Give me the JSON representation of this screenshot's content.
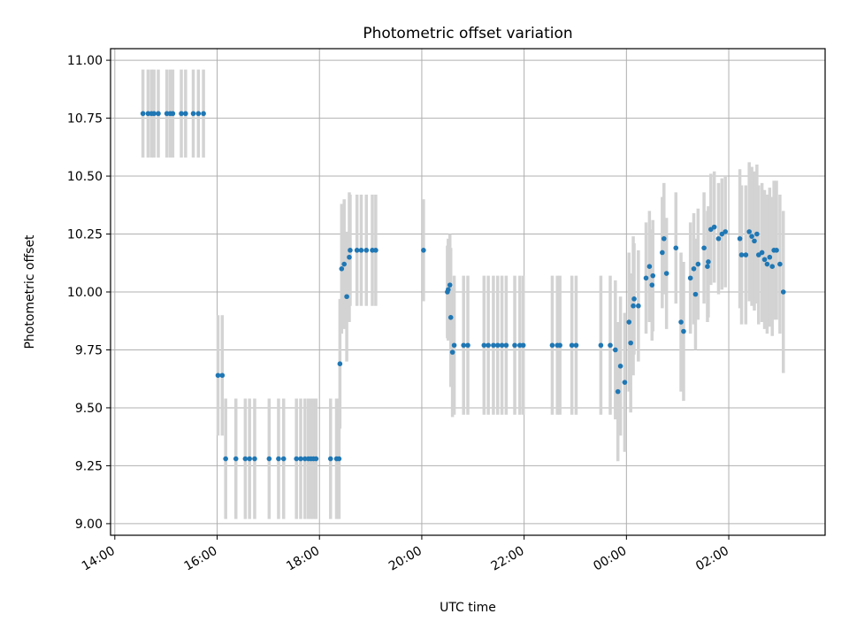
{
  "chart_data": {
    "type": "scatter",
    "title": "Photometric offset variation",
    "xlabel": "UTC time",
    "ylabel": "Photometric offset",
    "xlim": [
      "13:55",
      "27:53"
    ],
    "ylim": [
      8.95,
      11.05
    ],
    "x_ticks": [
      {
        "value": "14:00",
        "label": "14:00"
      },
      {
        "value": "16:00",
        "label": "16:00"
      },
      {
        "value": "18:00",
        "label": "18:00"
      },
      {
        "value": "20:00",
        "label": "20:00"
      },
      {
        "value": "22:00",
        "label": "22:00"
      },
      {
        "value": "24:00",
        "label": "00:00"
      },
      {
        "value": "26:00",
        "label": "02:00"
      }
    ],
    "y_ticks": [
      "9.00",
      "9.25",
      "9.50",
      "9.75",
      "10.00",
      "10.25",
      "10.50",
      "10.75",
      "11.00"
    ],
    "grid": true,
    "colors": {
      "marker": "#1f77b4",
      "errorbar": "#d3d3d3",
      "grid": "#b0b0b0"
    },
    "series": [
      {
        "points": [
          [
            "14:33",
            10.77,
            0.19
          ],
          [
            "14:39",
            10.77,
            0.19
          ],
          [
            "14:43",
            10.77,
            0.19
          ],
          [
            "14:46",
            10.77,
            0.19
          ],
          [
            "14:51",
            10.77,
            0.19
          ],
          [
            "15:01",
            10.77,
            0.19
          ],
          [
            "15:05",
            10.77,
            0.19
          ],
          [
            "15:08",
            10.77,
            0.19
          ],
          [
            "15:18",
            10.77,
            0.19
          ],
          [
            "15:23",
            10.77,
            0.19
          ],
          [
            "15:32",
            10.77,
            0.19
          ],
          [
            "15:38",
            10.77,
            0.19
          ],
          [
            "15:44",
            10.77,
            0.19
          ],
          [
            "16:01",
            9.64,
            0.26
          ],
          [
            "16:06",
            9.64,
            0.26
          ],
          [
            "16:10",
            9.28,
            0.26
          ],
          [
            "16:22",
            9.28,
            0.26
          ],
          [
            "16:33",
            9.28,
            0.26
          ],
          [
            "16:38",
            9.28,
            0.26
          ],
          [
            "16:44",
            9.28,
            0.26
          ],
          [
            "17:01",
            9.28,
            0.26
          ],
          [
            "17:12",
            9.28,
            0.26
          ],
          [
            "17:18",
            9.28,
            0.26
          ],
          [
            "17:33",
            9.28,
            0.26
          ],
          [
            "17:38",
            9.28,
            0.26
          ],
          [
            "17:43",
            9.28,
            0.26
          ],
          [
            "17:47",
            9.28,
            0.26
          ],
          [
            "17:50",
            9.28,
            0.26
          ],
          [
            "17:53",
            9.28,
            0.26
          ],
          [
            "17:56",
            9.28,
            0.26
          ],
          [
            "18:13",
            9.28,
            0.26
          ],
          [
            "18:20",
            9.28,
            0.26
          ],
          [
            "18:23",
            9.28,
            0.26
          ],
          [
            "18:24",
            9.69,
            0.28
          ],
          [
            "18:26",
            10.1,
            0.28
          ],
          [
            "18:29",
            10.12,
            0.28
          ],
          [
            "18:32",
            9.98,
            0.28
          ],
          [
            "18:35",
            10.15,
            0.28
          ],
          [
            "18:36",
            10.18,
            0.24
          ],
          [
            "18:44",
            10.18,
            0.24
          ],
          [
            "18:49",
            10.18,
            0.24
          ],
          [
            "18:55",
            10.18,
            0.24
          ],
          [
            "19:02",
            10.18,
            0.24
          ],
          [
            "19:06",
            10.18,
            0.24
          ],
          [
            "20:02",
            10.18,
            0.22
          ],
          [
            "20:30",
            10.0,
            0.2
          ],
          [
            "20:31",
            10.01,
            0.22
          ],
          [
            "20:33",
            10.03,
            0.22
          ],
          [
            "20:34",
            9.89,
            0.3
          ],
          [
            "20:36",
            9.74,
            0.28
          ],
          [
            "20:38",
            9.77,
            0.3
          ],
          [
            "20:49",
            9.77,
            0.3
          ],
          [
            "20:54",
            9.77,
            0.3
          ],
          [
            "21:13",
            9.77,
            0.3
          ],
          [
            "21:18",
            9.77,
            0.3
          ],
          [
            "21:24",
            9.77,
            0.3
          ],
          [
            "21:29",
            9.77,
            0.3
          ],
          [
            "21:34",
            9.77,
            0.3
          ],
          [
            "21:39",
            9.77,
            0.3
          ],
          [
            "21:49",
            9.77,
            0.3
          ],
          [
            "21:55",
            9.77,
            0.3
          ],
          [
            "21:59",
            9.77,
            0.3
          ],
          [
            "22:33",
            9.77,
            0.3
          ],
          [
            "22:39",
            9.77,
            0.3
          ],
          [
            "22:42",
            9.77,
            0.3
          ],
          [
            "22:56",
            9.77,
            0.3
          ],
          [
            "23:01",
            9.77,
            0.3
          ],
          [
            "23:30",
            9.77,
            0.3
          ],
          [
            "23:41",
            9.77,
            0.3
          ],
          [
            "23:47",
            9.75,
            0.3
          ],
          [
            "23:50",
            9.57,
            0.3
          ],
          [
            "23:53",
            9.68,
            0.3
          ],
          [
            "23:58",
            9.61,
            0.3
          ],
          [
            "24:03",
            9.87,
            0.3
          ],
          [
            "24:05",
            9.78,
            0.3
          ],
          [
            "24:08",
            9.94,
            0.3
          ],
          [
            "24:09",
            9.97,
            0.24
          ],
          [
            "24:14",
            9.94,
            0.24
          ],
          [
            "24:23",
            10.06,
            0.24
          ],
          [
            "24:27",
            10.11,
            0.24
          ],
          [
            "24:30",
            10.03,
            0.24
          ],
          [
            "24:31",
            10.07,
            0.24
          ],
          [
            "24:42",
            10.17,
            0.24
          ],
          [
            "24:44",
            10.23,
            0.24
          ],
          [
            "24:47",
            10.08,
            0.24
          ],
          [
            "24:58",
            10.19,
            0.24
          ],
          [
            "25:04",
            9.87,
            0.3
          ],
          [
            "25:07",
            9.83,
            0.3
          ],
          [
            "25:15",
            10.06,
            0.24
          ],
          [
            "25:19",
            10.1,
            0.24
          ],
          [
            "25:21",
            9.99,
            0.24
          ],
          [
            "25:24",
            10.12,
            0.24
          ],
          [
            "25:31",
            10.19,
            0.24
          ],
          [
            "25:35",
            10.11,
            0.24
          ],
          [
            "25:36",
            10.13,
            0.24
          ],
          [
            "25:39",
            10.27,
            0.24
          ],
          [
            "25:43",
            10.28,
            0.24
          ],
          [
            "25:48",
            10.23,
            0.24
          ],
          [
            "25:52",
            10.25,
            0.24
          ],
          [
            "25:56",
            10.26,
            0.24
          ],
          [
            "26:13",
            10.23,
            0.3
          ],
          [
            "26:15",
            10.16,
            0.3
          ],
          [
            "26:20",
            10.16,
            0.3
          ],
          [
            "26:24",
            10.26,
            0.3
          ],
          [
            "26:27",
            10.24,
            0.3
          ],
          [
            "26:30",
            10.22,
            0.3
          ],
          [
            "26:33",
            10.25,
            0.3
          ],
          [
            "26:35",
            10.16,
            0.3
          ],
          [
            "26:39",
            10.17,
            0.3
          ],
          [
            "26:42",
            10.14,
            0.3
          ],
          [
            "26:45",
            10.12,
            0.3
          ],
          [
            "26:48",
            10.15,
            0.3
          ],
          [
            "26:51",
            10.11,
            0.3
          ],
          [
            "26:53",
            10.18,
            0.3
          ],
          [
            "26:56",
            10.18,
            0.3
          ],
          [
            "27:00",
            10.12,
            0.3
          ],
          [
            "27:04",
            10.0,
            0.35
          ]
        ]
      }
    ]
  }
}
